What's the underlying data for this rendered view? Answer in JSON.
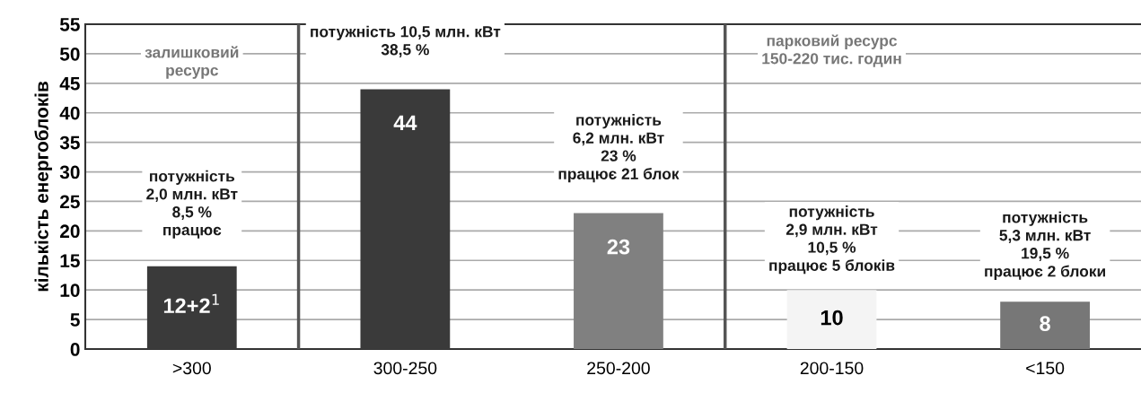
{
  "chart_data": {
    "type": "bar",
    "ylabel": "кількість енергоблоків",
    "categories": [
      ">300",
      "300-250",
      "250-200",
      "200-150",
      "<150"
    ],
    "values": [
      14,
      44,
      23,
      10,
      8
    ],
    "colors": [
      "#3a3a3a",
      "#3a3a3a",
      "#808080",
      "#f4f4f4",
      "#777777"
    ],
    "value_labels": [
      null,
      "44",
      "23",
      "10",
      "8"
    ],
    "ylim": [
      0,
      55
    ],
    "yticks": [
      0,
      5,
      10,
      15,
      20,
      25,
      30,
      35,
      40,
      45,
      50,
      55
    ],
    "grid": "y",
    "annotations": [
      "залишковий\nресурс",
      "потужність\n2,0 млн. кВт\n8,5 %\nпрацює",
      "потужність 10,5 млн. кВт\n38,5 %",
      "потужність\n6,2 млн. кВт\n23 %\nпрацює 21 блок",
      "парковий ресурс\n150-220 тис. годин",
      "потужність\n2,9 млн. кВт\n10,5 %\nпрацює 5 блоків",
      "потужність\n5,3 млн. кВт\n19,5 %\nпрацює 2 блоки",
      "12+2$^{1}$"
    ]
  }
}
